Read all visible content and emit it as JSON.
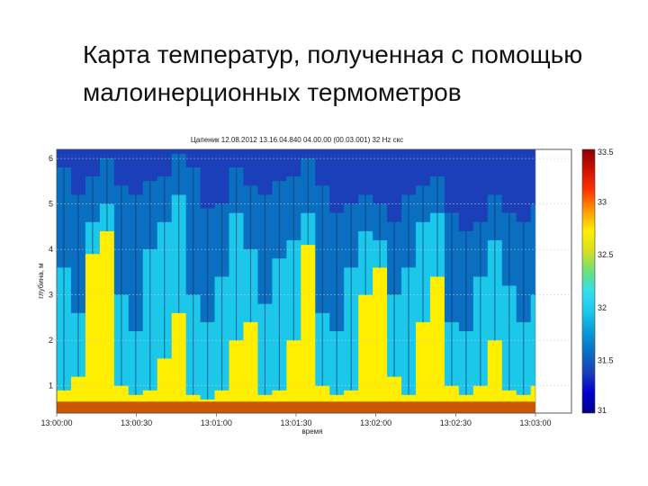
{
  "slide": {
    "title_line1": "Карта температур, полученная с помощью",
    "title_line2": "малоинерционных термометров"
  },
  "chart_data": {
    "type": "heatmap",
    "title": "Цапеник 12.08.2012 13.16.04.840 04.00.00 (00.03.001) 32 Hz скс",
    "xlabel": "время",
    "ylabel": "глубина, м",
    "x_ticks": [
      "13:00:00",
      "13:00:30",
      "13:01:00",
      "13:01:30",
      "13:02:00",
      "13:02:30",
      "13:03:00"
    ],
    "y_ticks": [
      1,
      2,
      3,
      4,
      5,
      6
    ],
    "y_range": [
      0.4,
      6.2
    ],
    "colorbar": {
      "ticks": [
        "33.5",
        "33",
        "32.5",
        "32",
        "31.5",
        "31"
      ],
      "range": [
        31,
        33.5
      ],
      "colors": [
        "#00008b",
        "#0000cd",
        "#1a3fb8",
        "#0a6fc0",
        "#0b9ad8",
        "#1cc8ea",
        "#33ddee",
        "#6de07a",
        "#d8e01c",
        "#ffee00",
        "#ff9900",
        "#ff3300",
        "#cc1100",
        "#8b0000"
      ]
    },
    "series_note": "",
    "columns": [
      {
        "t": 0.0,
        "top": 6.2,
        "yellow": 0.9,
        "cyan": 3.6,
        "blue": 5.8
      },
      {
        "t": 0.03,
        "top": 6.2,
        "yellow": 1.2,
        "cyan": 2.6,
        "blue": 5.2
      },
      {
        "t": 0.06,
        "top": 6.2,
        "yellow": 3.9,
        "cyan": 4.6,
        "blue": 5.6
      },
      {
        "t": 0.09,
        "top": 6.2,
        "yellow": 4.4,
        "cyan": 5.0,
        "blue": 6.0
      },
      {
        "t": 0.12,
        "top": 6.2,
        "yellow": 1.0,
        "cyan": 3.0,
        "blue": 5.4
      },
      {
        "t": 0.15,
        "top": 6.2,
        "yellow": 0.8,
        "cyan": 2.2,
        "blue": 5.2
      },
      {
        "t": 0.18,
        "top": 6.2,
        "yellow": 0.9,
        "cyan": 4.0,
        "blue": 5.5
      },
      {
        "t": 0.21,
        "top": 6.2,
        "yellow": 1.6,
        "cyan": 4.6,
        "blue": 5.6
      },
      {
        "t": 0.24,
        "top": 6.2,
        "yellow": 2.6,
        "cyan": 5.2,
        "blue": 6.1
      },
      {
        "t": 0.27,
        "top": 6.2,
        "yellow": 0.8,
        "cyan": 3.0,
        "blue": 5.8
      },
      {
        "t": 0.3,
        "top": 6.2,
        "yellow": 0.7,
        "cyan": 2.4,
        "blue": 4.9
      },
      {
        "t": 0.33,
        "top": 6.2,
        "yellow": 0.9,
        "cyan": 3.4,
        "blue": 5.0
      },
      {
        "t": 0.36,
        "top": 6.2,
        "yellow": 2.0,
        "cyan": 4.8,
        "blue": 5.8
      },
      {
        "t": 0.39,
        "top": 6.2,
        "yellow": 2.4,
        "cyan": 4.0,
        "blue": 5.4
      },
      {
        "t": 0.42,
        "top": 6.2,
        "yellow": 0.8,
        "cyan": 2.8,
        "blue": 5.2
      },
      {
        "t": 0.45,
        "top": 6.2,
        "yellow": 0.9,
        "cyan": 3.8,
        "blue": 5.5
      },
      {
        "t": 0.48,
        "top": 6.2,
        "yellow": 2.0,
        "cyan": 4.2,
        "blue": 5.6
      },
      {
        "t": 0.51,
        "top": 6.2,
        "yellow": 4.1,
        "cyan": 4.8,
        "blue": 6.0
      },
      {
        "t": 0.54,
        "top": 6.2,
        "yellow": 1.0,
        "cyan": 2.6,
        "blue": 5.4
      },
      {
        "t": 0.57,
        "top": 6.2,
        "yellow": 0.8,
        "cyan": 2.2,
        "blue": 4.8
      },
      {
        "t": 0.6,
        "top": 6.2,
        "yellow": 0.9,
        "cyan": 3.6,
        "blue": 5.0
      },
      {
        "t": 0.63,
        "top": 6.2,
        "yellow": 3.0,
        "cyan": 4.4,
        "blue": 5.2
      },
      {
        "t": 0.66,
        "top": 6.2,
        "yellow": 3.6,
        "cyan": 4.2,
        "blue": 5.0
      },
      {
        "t": 0.69,
        "top": 6.2,
        "yellow": 1.2,
        "cyan": 3.0,
        "blue": 4.6
      },
      {
        "t": 0.72,
        "top": 6.2,
        "yellow": 0.8,
        "cyan": 3.6,
        "blue": 5.2
      },
      {
        "t": 0.75,
        "top": 6.2,
        "yellow": 2.4,
        "cyan": 4.6,
        "blue": 5.4
      },
      {
        "t": 0.78,
        "top": 6.2,
        "yellow": 3.4,
        "cyan": 4.8,
        "blue": 5.6
      },
      {
        "t": 0.81,
        "top": 6.2,
        "yellow": 1.0,
        "cyan": 2.4,
        "blue": 4.8
      },
      {
        "t": 0.84,
        "top": 6.2,
        "yellow": 0.8,
        "cyan": 2.2,
        "blue": 4.4
      },
      {
        "t": 0.87,
        "top": 6.2,
        "yellow": 1.0,
        "cyan": 3.4,
        "blue": 4.6
      },
      {
        "t": 0.9,
        "top": 6.2,
        "yellow": 2.0,
        "cyan": 4.2,
        "blue": 5.2
      },
      {
        "t": 0.93,
        "top": 6.2,
        "yellow": 0.9,
        "cyan": 3.2,
        "blue": 4.8
      },
      {
        "t": 0.96,
        "top": 6.2,
        "yellow": 0.8,
        "cyan": 2.4,
        "blue": 4.6
      },
      {
        "t": 0.99,
        "top": 6.2,
        "yellow": 1.0,
        "cyan": 3.0,
        "blue": 5.0
      }
    ]
  }
}
